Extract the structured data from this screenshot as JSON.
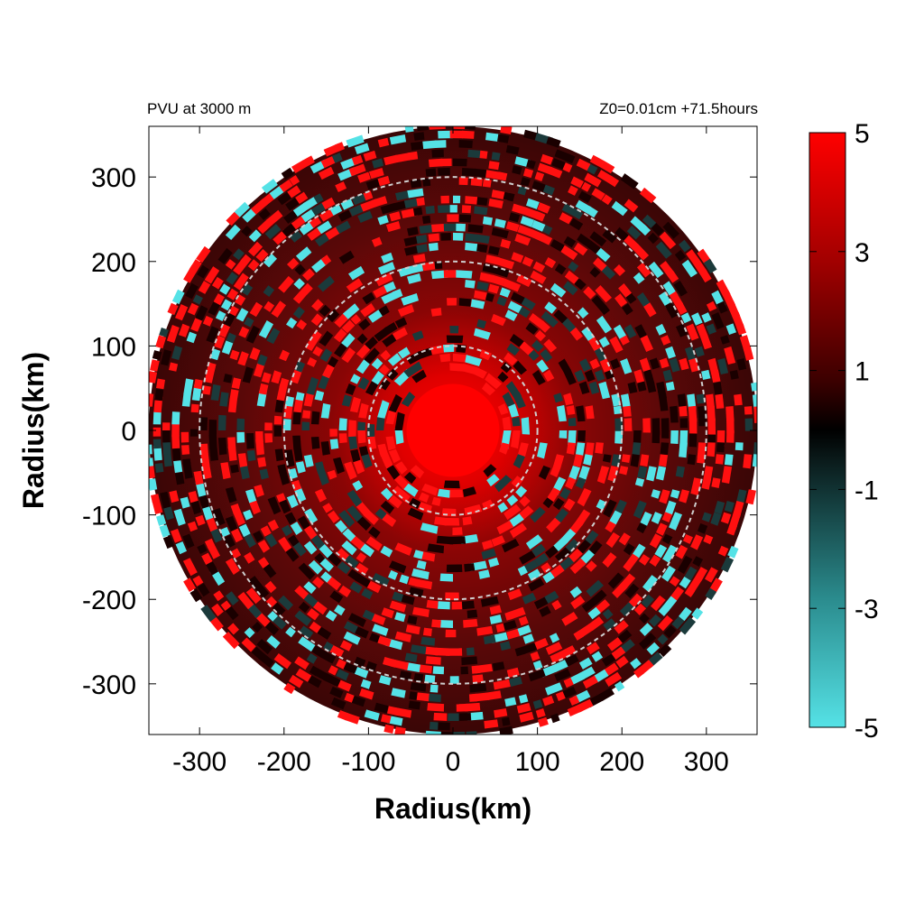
{
  "chart_data": {
    "type": "heatmap",
    "title_left": "PVU at  3000 m",
    "title_right": "Z0=0.01cm  +71.5hours",
    "xlabel": "Radius(km)",
    "ylabel": "Radius(km)",
    "xlim": [
      -360,
      360
    ],
    "ylim": [
      -360,
      360
    ],
    "x_ticks": [
      -300,
      -200,
      -100,
      0,
      100,
      200,
      300
    ],
    "y_ticks": [
      300,
      200,
      100,
      0,
      -100,
      -200,
      -300
    ],
    "x_tick_labels": [
      "-300",
      "-200",
      "-100",
      "0",
      "100",
      "200",
      "300"
    ],
    "y_tick_labels": [
      "300",
      "200",
      "100",
      "0",
      "-100",
      "-200",
      "-300"
    ],
    "rings_km": [
      100,
      200,
      300
    ],
    "domain_radius_km": 360,
    "colorbar": {
      "min": -5,
      "max": 5,
      "ticks": [
        5,
        3,
        1,
        -1,
        -3,
        -5
      ],
      "tick_labels": [
        "5",
        "3",
        "1",
        "-1",
        "-3",
        "-5"
      ],
      "colors": {
        "low": "#55e2e6",
        "mid": "#000000",
        "high": "#ff0000"
      }
    },
    "grid": false
  }
}
